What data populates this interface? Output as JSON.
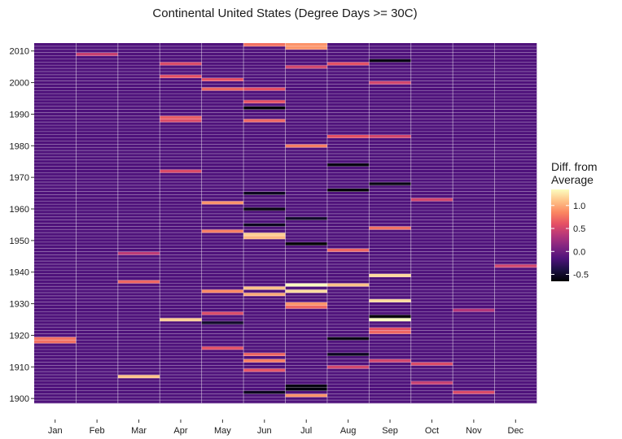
{
  "chart_data": {
    "type": "heatmap",
    "title": "Continental United States (Degree Days >= 30C)",
    "xlabel": "",
    "ylabel": "",
    "months": [
      "Jan",
      "Feb",
      "Mar",
      "Apr",
      "May",
      "Jun",
      "Jul",
      "Aug",
      "Sep",
      "Oct",
      "Nov",
      "Dec"
    ],
    "years": [
      1899,
      2012
    ],
    "y_ticks": [
      1900,
      1910,
      1920,
      1930,
      1940,
      1950,
      1960,
      1970,
      1980,
      1990,
      2000,
      2010
    ],
    "baseline": -0.15,
    "anomalies": [
      {
        "year": 1901,
        "month": "Jul",
        "value": 0.9
      },
      {
        "year": 1902,
        "month": "Nov",
        "value": 0.55
      },
      {
        "year": 1902,
        "month": "Jun",
        "value": -0.55
      },
      {
        "year": 1903,
        "month": "Jul",
        "value": -0.6
      },
      {
        "year": 1904,
        "month": "Jul",
        "value": -0.6
      },
      {
        "year": 1905,
        "month": "Oct",
        "value": 0.45
      },
      {
        "year": 1907,
        "month": "Mar",
        "value": 1.1
      },
      {
        "year": 1909,
        "month": "Jun",
        "value": 0.6
      },
      {
        "year": 1910,
        "month": "Aug",
        "value": 0.5
      },
      {
        "year": 1911,
        "month": "Oct",
        "value": 0.55
      },
      {
        "year": 1912,
        "month": "Jun",
        "value": 0.8
      },
      {
        "year": 1912,
        "month": "Sep",
        "value": 0.5
      },
      {
        "year": 1914,
        "month": "Jun",
        "value": 0.7
      },
      {
        "year": 1914,
        "month": "Aug",
        "value": -0.55
      },
      {
        "year": 1916,
        "month": "May",
        "value": 0.6
      },
      {
        "year": 1918,
        "month": "Jan",
        "value": 0.75
      },
      {
        "year": 1919,
        "month": "Jan",
        "value": 0.75
      },
      {
        "year": 1919,
        "month": "Aug",
        "value": -0.6
      },
      {
        "year": 1921,
        "month": "Sep",
        "value": 0.7
      },
      {
        "year": 1922,
        "month": "Sep",
        "value": 0.6
      },
      {
        "year": 1924,
        "month": "May",
        "value": -0.5
      },
      {
        "year": 1925,
        "month": "Apr",
        "value": 1.15
      },
      {
        "year": 1925,
        "month": "Sep",
        "value": 1.35
      },
      {
        "year": 1926,
        "month": "Sep",
        "value": -0.65
      },
      {
        "year": 1927,
        "month": "May",
        "value": 0.55
      },
      {
        "year": 1928,
        "month": "Nov",
        "value": 0.35
      },
      {
        "year": 1929,
        "month": "Jul",
        "value": 0.7
      },
      {
        "year": 1930,
        "month": "Jul",
        "value": 0.9
      },
      {
        "year": 1931,
        "month": "Sep",
        "value": 1.2
      },
      {
        "year": 1933,
        "month": "Jun",
        "value": 1.0
      },
      {
        "year": 1934,
        "month": "May",
        "value": 0.85
      },
      {
        "year": 1934,
        "month": "Jul",
        "value": 1.2
      },
      {
        "year": 1935,
        "month": "Jun",
        "value": 1.1
      },
      {
        "year": 1936,
        "month": "Jul",
        "value": 1.35
      },
      {
        "year": 1936,
        "month": "Aug",
        "value": 1.1
      },
      {
        "year": 1937,
        "month": "Mar",
        "value": 0.7
      },
      {
        "year": 1939,
        "month": "Sep",
        "value": 1.2
      },
      {
        "year": 1942,
        "month": "Dec",
        "value": 0.5
      },
      {
        "year": 1946,
        "month": "Mar",
        "value": 0.4
      },
      {
        "year": 1947,
        "month": "Aug",
        "value": 0.7
      },
      {
        "year": 1949,
        "month": "Jul",
        "value": -0.65
      },
      {
        "year": 1951,
        "month": "Jun",
        "value": 1.05
      },
      {
        "year": 1952,
        "month": "Jun",
        "value": 1.15
      },
      {
        "year": 1953,
        "month": "May",
        "value": 0.8
      },
      {
        "year": 1954,
        "month": "Sep",
        "value": 0.75
      },
      {
        "year": 1955,
        "month": "Jun",
        "value": -0.55
      },
      {
        "year": 1957,
        "month": "Jul",
        "value": -0.5
      },
      {
        "year": 1960,
        "month": "Jun",
        "value": -0.6
      },
      {
        "year": 1962,
        "month": "May",
        "value": 0.9
      },
      {
        "year": 1963,
        "month": "Oct",
        "value": 0.5
      },
      {
        "year": 1965,
        "month": "Jun",
        "value": -0.55
      },
      {
        "year": 1966,
        "month": "Aug",
        "value": -0.65
      },
      {
        "year": 1968,
        "month": "Sep",
        "value": -0.6
      },
      {
        "year": 1972,
        "month": "Apr",
        "value": 0.55
      },
      {
        "year": 1974,
        "month": "Aug",
        "value": -0.6
      },
      {
        "year": 1980,
        "month": "Jul",
        "value": 0.8
      },
      {
        "year": 1983,
        "month": "Aug",
        "value": 0.6
      },
      {
        "year": 1983,
        "month": "Sep",
        "value": 0.5
      },
      {
        "year": 1988,
        "month": "Jun",
        "value": 0.7
      },
      {
        "year": 1988,
        "month": "Apr",
        "value": 0.55
      },
      {
        "year": 1989,
        "month": "Apr",
        "value": 0.65
      },
      {
        "year": 1992,
        "month": "Jun",
        "value": -0.65
      },
      {
        "year": 1994,
        "month": "Jun",
        "value": 0.6
      },
      {
        "year": 1998,
        "month": "May",
        "value": 0.7
      },
      {
        "year": 1998,
        "month": "Jun",
        "value": 0.6
      },
      {
        "year": 2000,
        "month": "Sep",
        "value": 0.5
      },
      {
        "year": 2001,
        "month": "May",
        "value": 0.6
      },
      {
        "year": 2002,
        "month": "Apr",
        "value": 0.6
      },
      {
        "year": 2005,
        "month": "Jul",
        "value": 0.5
      },
      {
        "year": 2006,
        "month": "Apr",
        "value": 0.55
      },
      {
        "year": 2006,
        "month": "Aug",
        "value": 0.6
      },
      {
        "year": 2007,
        "month": "Sep",
        "value": -0.6
      },
      {
        "year": 2009,
        "month": "Feb",
        "value": 0.45
      },
      {
        "year": 2011,
        "month": "Jul",
        "value": 0.9
      },
      {
        "year": 2012,
        "month": "Jun",
        "value": 0.75
      },
      {
        "year": 2012,
        "month": "Jul",
        "value": 0.9
      }
    ],
    "legend": {
      "title_line1": "Diff. from",
      "title_line2": "Average",
      "position": "right",
      "range": [
        -0.65,
        1.35
      ],
      "ticks": [
        {
          "value": 1.0,
          "label": "1.0"
        },
        {
          "value": 0.5,
          "label": "0.5"
        },
        {
          "value": 0.0,
          "label": "0.0"
        },
        {
          "value": -0.5,
          "label": "-0.5"
        }
      ],
      "palette": [
        "#000004",
        "#1c1044",
        "#4f127b",
        "#812581",
        "#b5367a",
        "#e55064",
        "#fb8761",
        "#fec287",
        "#fcfdbf"
      ]
    },
    "grid": true,
    "row_divider_color": "#ffffff"
  }
}
